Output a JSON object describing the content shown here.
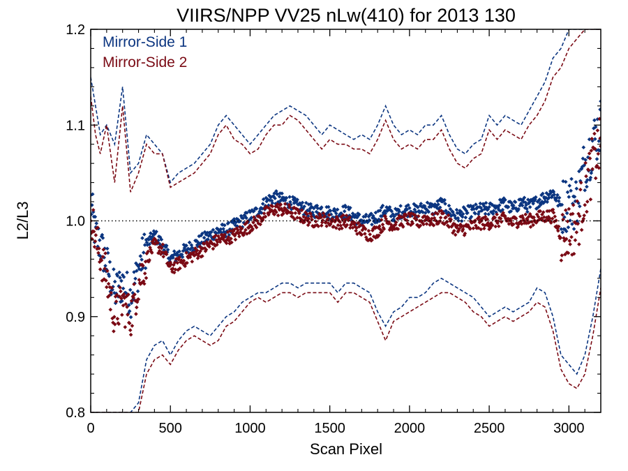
{
  "chart_data": {
    "type": "scatter",
    "title": "VIIRS/NPP VV25 nLw(410) for 2013 130",
    "xlabel": "Scan Pixel",
    "ylabel": "L2/L3",
    "xlim": [
      0,
      3200
    ],
    "ylim": [
      0.8,
      1.2
    ],
    "xticks": [
      0,
      500,
      1000,
      1500,
      2000,
      2500,
      3000
    ],
    "xtick_labels": [
      "0",
      "500",
      "1000",
      "1500",
      "2000",
      "2500",
      "3000"
    ],
    "yticks": [
      0.8,
      0.9,
      1.0,
      1.1,
      1.2
    ],
    "ytick_labels": [
      "0.8",
      "0.9",
      "1.0",
      "1.1",
      "1.2"
    ],
    "reference_line": 1.0,
    "legend_position": "top-left",
    "series": [
      {
        "name": "Mirror-Side 1",
        "color": "#0b3580",
        "mean_x": [
          0,
          30,
          60,
          100,
          150,
          200,
          250,
          300,
          350,
          400,
          450,
          500,
          550,
          600,
          650,
          700,
          750,
          800,
          850,
          900,
          950,
          1000,
          1050,
          1100,
          1150,
          1200,
          1250,
          1300,
          1350,
          1400,
          1450,
          1500,
          1550,
          1600,
          1650,
          1700,
          1750,
          1800,
          1850,
          1900,
          1950,
          2000,
          2050,
          2100,
          2150,
          2200,
          2250,
          2300,
          2350,
          2400,
          2450,
          2500,
          2550,
          2600,
          2650,
          2700,
          2750,
          2800,
          2850,
          2900,
          2950,
          3000,
          3050,
          3100,
          3150,
          3200
        ],
        "mean": [
          1.02,
          0.985,
          0.975,
          0.955,
          0.925,
          0.935,
          0.92,
          0.95,
          0.975,
          0.985,
          0.975,
          0.96,
          0.965,
          0.97,
          0.975,
          0.98,
          0.985,
          0.99,
          0.99,
          0.995,
          1.0,
          1.005,
          1.01,
          1.02,
          1.025,
          1.022,
          1.02,
          1.015,
          1.012,
          1.01,
          1.012,
          1.008,
          1.008,
          1.01,
          1.005,
          1.0,
          1.0,
          1.005,
          1.012,
          1.005,
          1.01,
          1.012,
          1.01,
          1.015,
          1.012,
          1.018,
          1.01,
          1.005,
          1.008,
          1.01,
          1.012,
          1.012,
          1.015,
          1.018,
          1.012,
          1.02,
          1.015,
          1.02,
          1.025,
          1.03,
          1.015,
          1.02,
          1.02,
          1.06,
          1.08,
          1.1
        ],
        "upper": [
          1.15,
          1.12,
          1.09,
          1.1,
          1.08,
          1.14,
          1.05,
          1.06,
          1.09,
          1.08,
          1.07,
          1.04,
          1.05,
          1.055,
          1.06,
          1.07,
          1.08,
          1.1,
          1.11,
          1.1,
          1.09,
          1.08,
          1.09,
          1.1,
          1.11,
          1.115,
          1.12,
          1.115,
          1.11,
          1.1,
          1.09,
          1.1,
          1.095,
          1.09,
          1.085,
          1.09,
          1.085,
          1.1,
          1.12,
          1.1,
          1.09,
          1.095,
          1.09,
          1.1,
          1.1,
          1.11,
          1.09,
          1.075,
          1.07,
          1.08,
          1.085,
          1.11,
          1.1,
          1.11,
          1.105,
          1.1,
          1.115,
          1.13,
          1.145,
          1.17,
          1.18,
          1.2,
          1.2,
          1.2,
          1.2,
          1.2
        ],
        "lower": [
          0.8,
          0.8,
          0.8,
          0.8,
          0.8,
          0.8,
          0.8,
          0.81,
          0.855,
          0.87,
          0.875,
          0.86,
          0.875,
          0.885,
          0.89,
          0.885,
          0.88,
          0.89,
          0.9,
          0.905,
          0.915,
          0.92,
          0.925,
          0.925,
          0.93,
          0.935,
          0.935,
          0.93,
          0.935,
          0.935,
          0.935,
          0.935,
          0.925,
          0.935,
          0.935,
          0.93,
          0.925,
          0.905,
          0.89,
          0.905,
          0.91,
          0.92,
          0.92,
          0.925,
          0.935,
          0.94,
          0.935,
          0.93,
          0.925,
          0.92,
          0.91,
          0.9,
          0.905,
          0.91,
          0.905,
          0.91,
          0.915,
          0.93,
          0.925,
          0.9,
          0.86,
          0.85,
          0.84,
          0.86,
          0.9,
          0.95
        ]
      },
      {
        "name": "Mirror-Side 2",
        "color": "#7a0a14",
        "mean_x": [
          0,
          30,
          60,
          100,
          150,
          200,
          250,
          300,
          350,
          400,
          450,
          500,
          550,
          600,
          650,
          700,
          750,
          800,
          850,
          900,
          950,
          1000,
          1050,
          1100,
          1150,
          1200,
          1250,
          1300,
          1350,
          1400,
          1450,
          1500,
          1550,
          1600,
          1650,
          1700,
          1750,
          1800,
          1850,
          1900,
          1950,
          2000,
          2050,
          2100,
          2150,
          2200,
          2250,
          2300,
          2350,
          2400,
          2450,
          2500,
          2550,
          2600,
          2650,
          2700,
          2750,
          2800,
          2850,
          2900,
          2950,
          3000,
          3050,
          3100,
          3150,
          3200
        ],
        "mean": [
          1.01,
          0.98,
          0.965,
          0.94,
          0.9,
          0.915,
          0.9,
          0.935,
          0.96,
          0.975,
          0.97,
          0.95,
          0.955,
          0.96,
          0.965,
          0.97,
          0.975,
          0.98,
          0.982,
          0.985,
          0.99,
          0.995,
          1.0,
          1.008,
          1.012,
          1.012,
          1.01,
          1.006,
          1.003,
          1.0,
          1.002,
          1.0,
          0.998,
          1.0,
          0.995,
          0.99,
          0.985,
          0.99,
          1.0,
          0.995,
          1.0,
          1.002,
          0.998,
          1.003,
          1.0,
          1.005,
          0.998,
          0.99,
          0.992,
          0.995,
          0.998,
          0.998,
          1.0,
          1.002,
          0.998,
          1.002,
          1.0,
          1.003,
          1.005,
          1.005,
          0.985,
          0.99,
          0.995,
          1.03,
          1.06,
          1.08
        ],
        "upper": [
          1.13,
          1.09,
          1.07,
          1.1,
          1.04,
          1.12,
          1.03,
          1.05,
          1.08,
          1.07,
          1.07,
          1.035,
          1.04,
          1.045,
          1.05,
          1.06,
          1.07,
          1.09,
          1.1,
          1.085,
          1.08,
          1.07,
          1.075,
          1.09,
          1.1,
          1.1,
          1.11,
          1.105,
          1.095,
          1.085,
          1.075,
          1.085,
          1.08,
          1.08,
          1.075,
          1.075,
          1.07,
          1.085,
          1.105,
          1.085,
          1.075,
          1.08,
          1.075,
          1.085,
          1.085,
          1.095,
          1.075,
          1.06,
          1.055,
          1.065,
          1.07,
          1.095,
          1.085,
          1.095,
          1.09,
          1.085,
          1.1,
          1.11,
          1.125,
          1.15,
          1.16,
          1.18,
          1.19,
          1.2,
          1.2,
          1.2
        ],
        "lower": [
          0.8,
          0.8,
          0.8,
          0.8,
          0.8,
          0.8,
          0.8,
          0.8,
          0.84,
          0.855,
          0.86,
          0.85,
          0.865,
          0.875,
          0.88,
          0.875,
          0.87,
          0.875,
          0.89,
          0.895,
          0.905,
          0.915,
          0.92,
          0.915,
          0.92,
          0.925,
          0.925,
          0.92,
          0.925,
          0.925,
          0.925,
          0.925,
          0.915,
          0.925,
          0.925,
          0.92,
          0.915,
          0.895,
          0.875,
          0.895,
          0.9,
          0.905,
          0.91,
          0.915,
          0.92,
          0.925,
          0.925,
          0.92,
          0.915,
          0.905,
          0.9,
          0.89,
          0.895,
          0.9,
          0.895,
          0.9,
          0.905,
          0.915,
          0.91,
          0.885,
          0.845,
          0.83,
          0.825,
          0.84,
          0.88,
          0.93
        ]
      }
    ]
  }
}
